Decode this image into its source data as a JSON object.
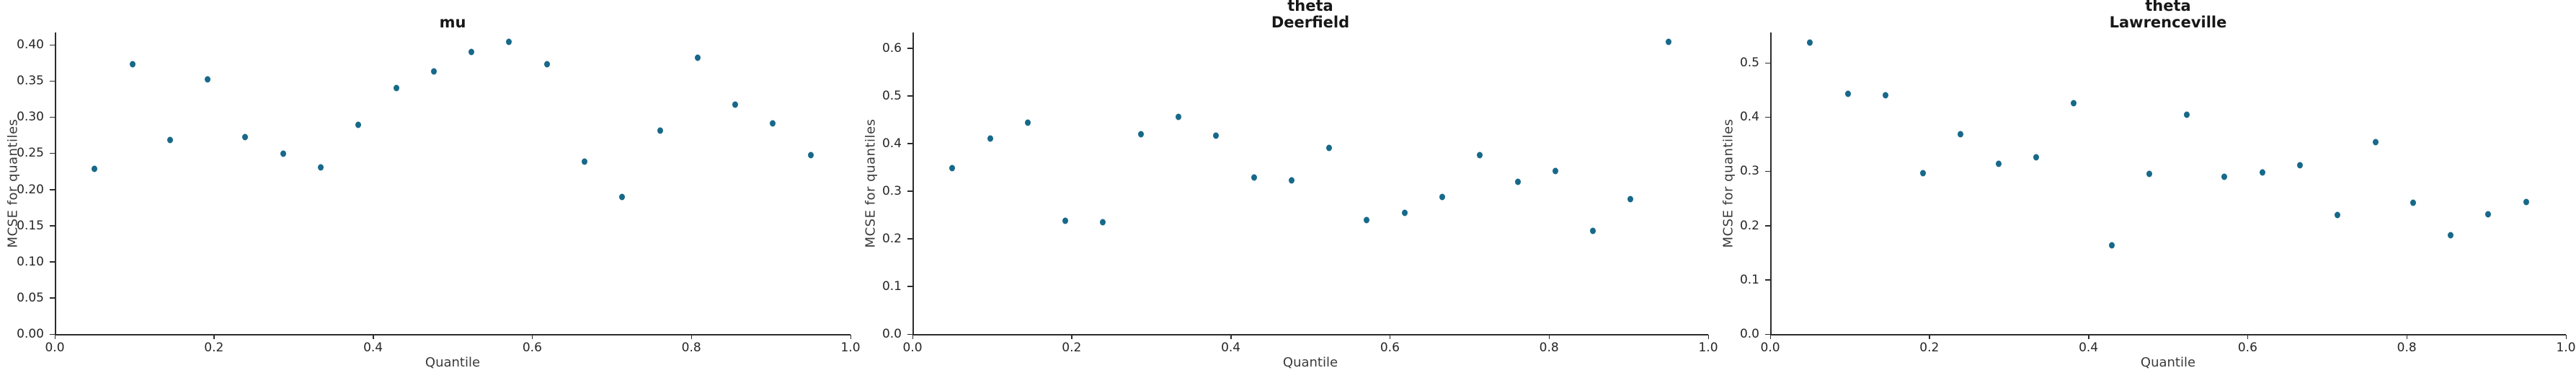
{
  "figure": {
    "point_color": "#17698a",
    "spine_color": "#2c2c2c",
    "tick_label_color": "#262626",
    "axis_label_color": "#3a3a3a",
    "title_color": "#171717",
    "background": "#ffffff"
  },
  "chart_data": [
    {
      "type": "scatter",
      "title": "mu",
      "subtitle": "",
      "xlabel": "Quantile",
      "ylabel": "MCSE for quantiles",
      "xlim": [
        0.0,
        1.0
      ],
      "ylim": [
        0.0,
        0.417
      ],
      "grid": false,
      "legend": "none",
      "xticks": [
        "0.0",
        "0.2",
        "0.4",
        "0.6",
        "0.8",
        "1.0"
      ],
      "yticks": [
        "0.00",
        "0.05",
        "0.10",
        "0.15",
        "0.20",
        "0.25",
        "0.30",
        "0.35",
        "0.40"
      ],
      "x": [
        0.05,
        0.0974,
        0.1447,
        0.1921,
        0.2395,
        0.2868,
        0.3342,
        0.3816,
        0.4289,
        0.4763,
        0.5237,
        0.5711,
        0.6184,
        0.6658,
        0.7132,
        0.7605,
        0.8079,
        0.8553,
        0.9026,
        0.95
      ],
      "y": [
        0.228,
        0.373,
        0.268,
        0.352,
        0.272,
        0.249,
        0.23,
        0.289,
        0.34,
        0.363,
        0.39,
        0.404,
        0.373,
        0.238,
        0.19,
        0.281,
        0.382,
        0.317,
        0.291,
        0.247
      ]
    },
    {
      "type": "scatter",
      "title": "theta",
      "subtitle": "Deerfield",
      "xlabel": "Quantile",
      "ylabel": "MCSE for quantiles",
      "xlim": [
        0.0,
        1.0
      ],
      "ylim": [
        0.0,
        0.633
      ],
      "grid": false,
      "legend": "none",
      "xticks": [
        "0.0",
        "0.2",
        "0.4",
        "0.6",
        "0.8",
        "1.0"
      ],
      "yticks": [
        "0.0",
        "0.1",
        "0.2",
        "0.3",
        "0.4",
        "0.5",
        "0.6"
      ],
      "x": [
        0.05,
        0.0974,
        0.1447,
        0.1921,
        0.2395,
        0.2868,
        0.3342,
        0.3816,
        0.4289,
        0.4763,
        0.5237,
        0.5711,
        0.6184,
        0.6658,
        0.7132,
        0.7605,
        0.8079,
        0.8553,
        0.9026,
        0.95
      ],
      "y": [
        0.348,
        0.411,
        0.443,
        0.238,
        0.234,
        0.419,
        0.456,
        0.416,
        0.328,
        0.323,
        0.39,
        0.24,
        0.255,
        0.287,
        0.375,
        0.319,
        0.343,
        0.217,
        0.283,
        0.614
      ]
    },
    {
      "type": "scatter",
      "title": "theta",
      "subtitle": "Lawrenceville",
      "xlabel": "Quantile",
      "ylabel": "MCSE for quantiles",
      "xlim": [
        0.0,
        1.0
      ],
      "ylim": [
        0.0,
        0.556
      ],
      "grid": false,
      "legend": "none",
      "xticks": [
        "0.0",
        "0.2",
        "0.4",
        "0.6",
        "0.8",
        "1.0"
      ],
      "yticks": [
        "0.0",
        "0.1",
        "0.2",
        "0.3",
        "0.4",
        "0.5"
      ],
      "x": [
        0.05,
        0.0974,
        0.1447,
        0.1921,
        0.2395,
        0.2868,
        0.3342,
        0.3816,
        0.4289,
        0.4763,
        0.5237,
        0.5711,
        0.6184,
        0.6658,
        0.7132,
        0.7605,
        0.8079,
        0.8553,
        0.9026,
        0.95
      ],
      "y": [
        0.537,
        0.443,
        0.44,
        0.296,
        0.368,
        0.314,
        0.326,
        0.425,
        0.163,
        0.295,
        0.404,
        0.29,
        0.298,
        0.311,
        0.22,
        0.354,
        0.242,
        0.182,
        0.221,
        0.244
      ]
    }
  ]
}
